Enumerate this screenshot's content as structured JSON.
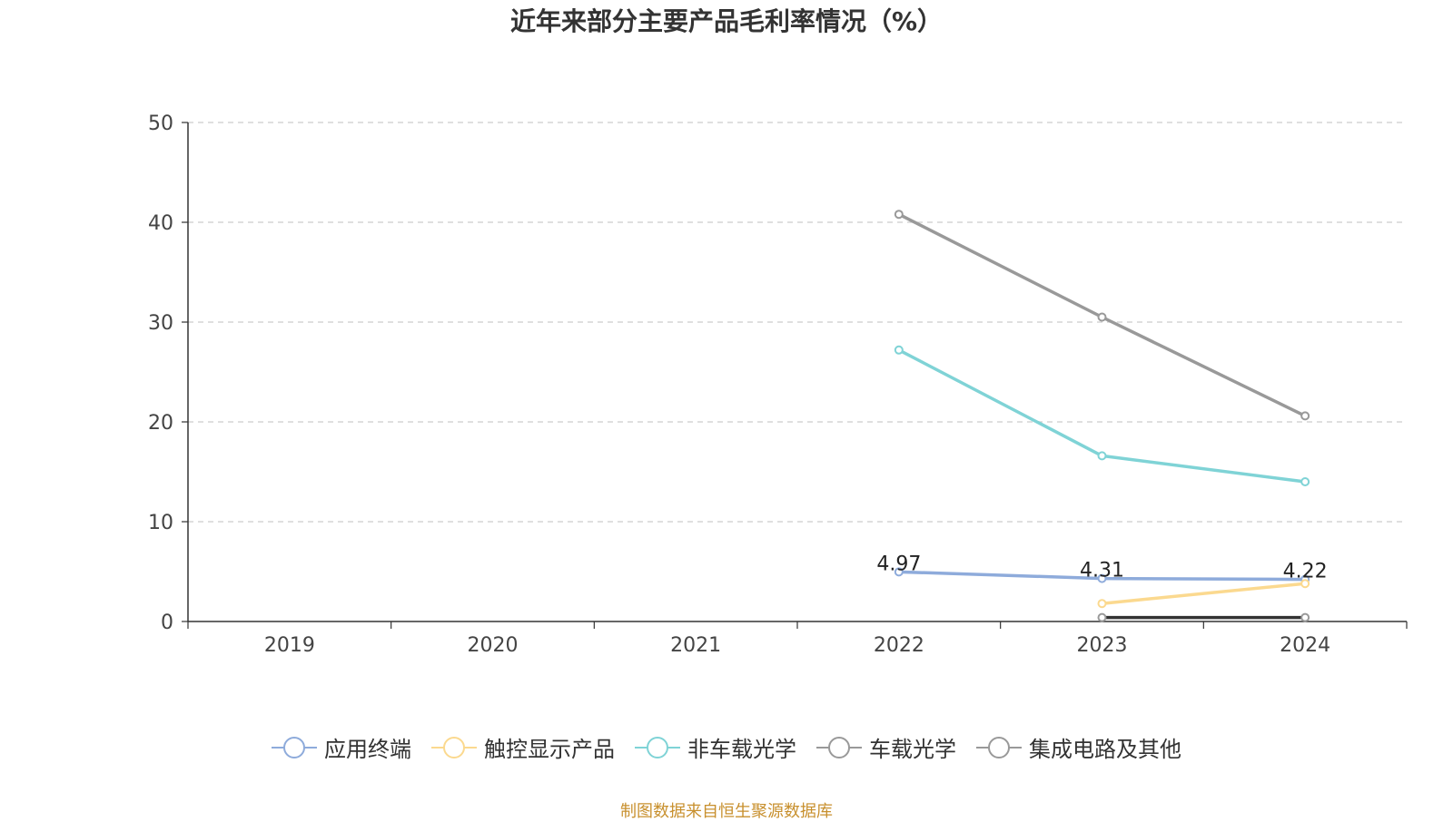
{
  "chart_data": {
    "type": "line",
    "title": "近年来部分主要产品毛利率情况（%）",
    "categories": [
      "2019",
      "2020",
      "2021",
      "2022",
      "2023",
      "2024"
    ],
    "ylim": [
      0,
      50
    ],
    "yticks": [
      0,
      10,
      20,
      30,
      40,
      50
    ],
    "grid": true,
    "legend_position": "bottom",
    "series": [
      {
        "name": "应用终端",
        "color": "#8eabdb",
        "values": [
          null,
          null,
          null,
          4.97,
          4.31,
          4.22
        ],
        "labels": [
          "",
          "",
          "",
          "4.97",
          "4.31",
          "4.22"
        ]
      },
      {
        "name": "触控显示产品",
        "color": "#fbd98f",
        "values": [
          null,
          null,
          null,
          null,
          1.8,
          3.8
        ]
      },
      {
        "name": "非车载光学",
        "color": "#7fd3d6",
        "values": [
          null,
          null,
          null,
          27.2,
          16.6,
          14.0
        ]
      },
      {
        "name": "车载光学",
        "color": "#999999",
        "values": [
          null,
          null,
          null,
          40.8,
          30.5,
          20.6
        ]
      },
      {
        "name": "集成电路及其他",
        "color": "#333333",
        "marker_color": "#999999",
        "values": [
          null,
          null,
          null,
          null,
          0.4,
          0.4
        ]
      }
    ]
  },
  "source_text": "制图数据来自恒生聚源数据库"
}
